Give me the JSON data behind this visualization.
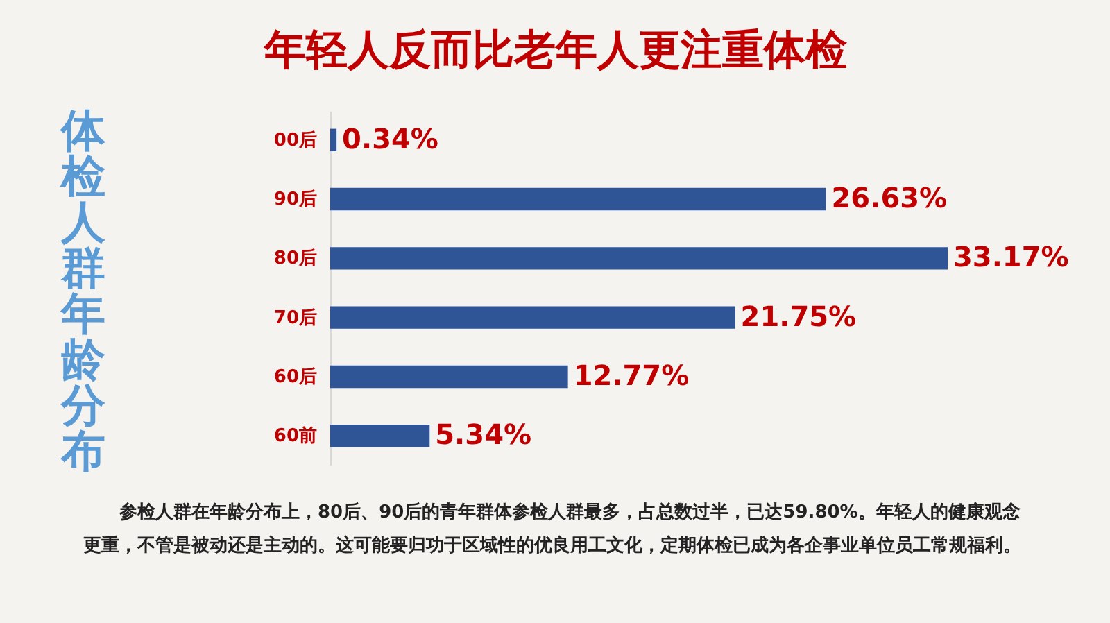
{
  "chart_data": {
    "type": "bar",
    "orientation": "horizontal",
    "title": "年轻人反而比老年人更注重体检",
    "ylabel": "体检人群年龄分布",
    "categories": [
      "00后",
      "90后",
      "80后",
      "70后",
      "60后",
      "60前"
    ],
    "values": [
      0.34,
      26.63,
      33.17,
      21.75,
      12.77,
      5.34
    ],
    "value_labels": [
      "0.34%",
      "26.63%",
      "33.17%",
      "21.75%",
      "12.77%",
      "5.34%"
    ],
    "color": "#2f5597",
    "annotations": [
      "参检人群在年龄分布上，80后、90后的青年群体参检人群最多，占总数过半，已达59.80%。年轻人的健康观念更重，不管是被动还是主动的。这可能要归功于区域性的优良用工文化，定期体检已成为各企事业单位员工常规福利。"
    ]
  }
}
